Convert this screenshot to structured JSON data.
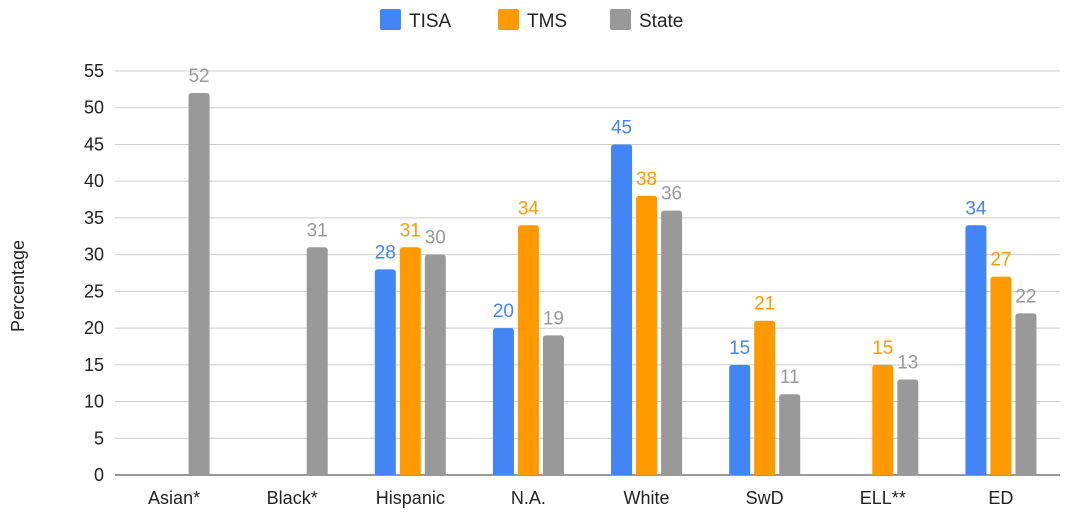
{
  "chart_data": {
    "type": "bar",
    "title": "",
    "xlabel": "",
    "ylabel": "Percentage",
    "ylim": [
      0,
      55
    ],
    "yticks": [
      0,
      5,
      10,
      15,
      20,
      25,
      30,
      35,
      40,
      45,
      50,
      55
    ],
    "grid": true,
    "legend_position": "top-center",
    "categories": [
      "Asian*",
      "Black*",
      "Hispanic",
      "N.A.",
      "White",
      "SwD",
      "ELL**",
      "ED"
    ],
    "series": [
      {
        "name": "TISA",
        "color": "#4285f4",
        "values": [
          null,
          null,
          28,
          20,
          45,
          15,
          null,
          34
        ]
      },
      {
        "name": "TMS",
        "color": "#ff9900",
        "values": [
          null,
          null,
          31,
          34,
          38,
          21,
          15,
          27
        ]
      },
      {
        "name": "State",
        "color": "#999999",
        "values": [
          52,
          31,
          30,
          19,
          36,
          11,
          13,
          22
        ]
      }
    ]
  }
}
